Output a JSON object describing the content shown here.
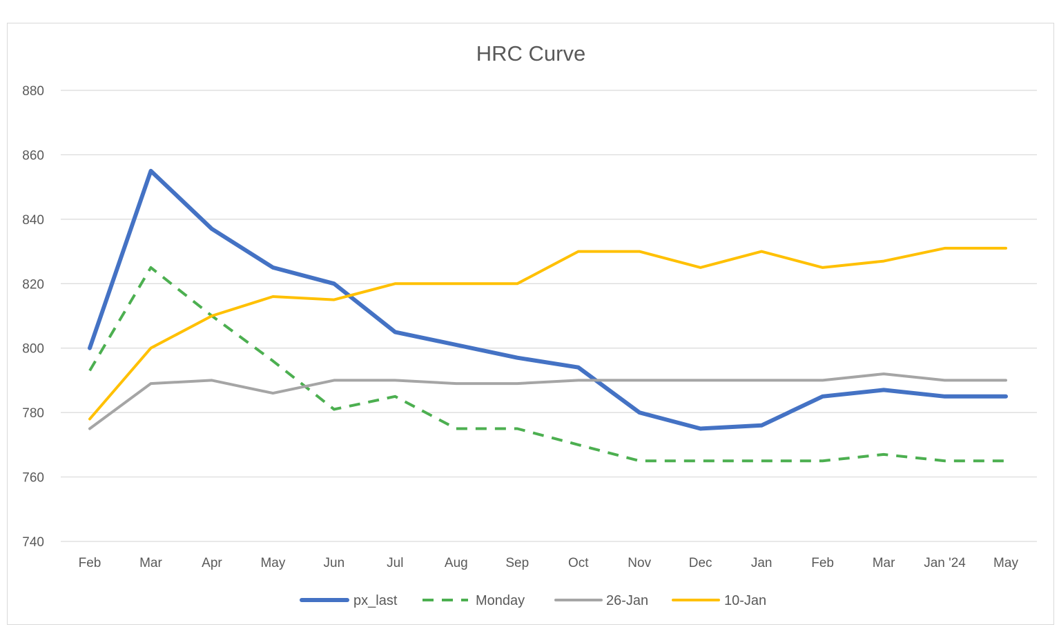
{
  "chart_data": {
    "type": "line",
    "title": "HRC Curve",
    "xlabel": "",
    "ylabel": "",
    "categories": [
      "Feb",
      "Mar",
      "Apr",
      "May",
      "Jun",
      "Jul",
      "Aug",
      "Sep",
      "Oct",
      "Nov",
      "Dec",
      "Jan",
      "Feb",
      "Mar",
      "Jan '24",
      "May"
    ],
    "ylim": [
      740,
      880
    ],
    "yticks": [
      740,
      760,
      780,
      800,
      820,
      840,
      860,
      880
    ],
    "grid": "horizontal",
    "legend_position": "bottom",
    "series": [
      {
        "name": "px_last",
        "color": "#4472C4",
        "style": "solid",
        "width": 6,
        "values": [
          800,
          855,
          837,
          825,
          820,
          805,
          801,
          797,
          794,
          780,
          775,
          776,
          785,
          787,
          785,
          785
        ]
      },
      {
        "name": "Monday",
        "color": "#4CAF50",
        "style": "dashed",
        "width": 4,
        "values": [
          793,
          825,
          810,
          796,
          781,
          785,
          775,
          775,
          770,
          765,
          765,
          765,
          765,
          767,
          765,
          765
        ]
      },
      {
        "name": "26-Jan",
        "color": "#A5A5A5",
        "style": "solid",
        "width": 4,
        "values": [
          775,
          789,
          790,
          786,
          790,
          790,
          789,
          789,
          790,
          790,
          790,
          790,
          790,
          792,
          790,
          790
        ]
      },
      {
        "name": "10-Jan",
        "color": "#FFC000",
        "style": "solid",
        "width": 4,
        "values": [
          778,
          800,
          810,
          816,
          815,
          820,
          820,
          820,
          830,
          830,
          825,
          830,
          825,
          827,
          831,
          831
        ]
      }
    ]
  }
}
